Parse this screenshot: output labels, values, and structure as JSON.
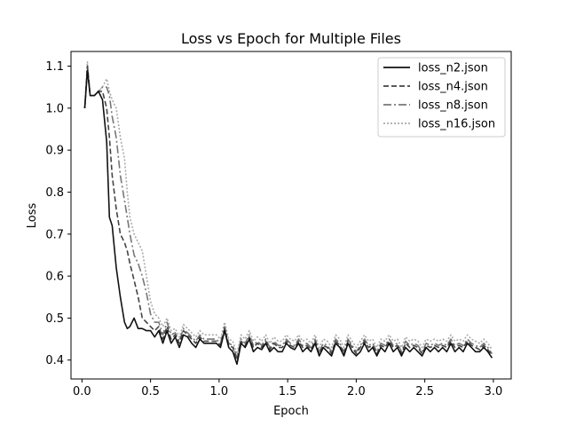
{
  "chart_data": {
    "type": "line",
    "title": "Loss vs Epoch for Multiple Files",
    "xlabel": "Epoch",
    "ylabel": "Loss",
    "xlim": [
      -0.08,
      3.13
    ],
    "ylim": [
      0.355,
      1.135
    ],
    "xticks": [
      0.0,
      0.5,
      1.0,
      1.5,
      2.0,
      2.5,
      3.0
    ],
    "xtick_labels": [
      "0.0",
      "0.5",
      "1.0",
      "1.5",
      "2.0",
      "2.5",
      "3.0"
    ],
    "yticks": [
      0.4,
      0.5,
      0.6,
      0.7,
      0.8,
      0.9,
      1.0,
      1.1
    ],
    "ytick_labels": [
      "0.4",
      "0.5",
      "0.6",
      "0.7",
      "0.8",
      "0.9",
      "1.0",
      "1.1"
    ],
    "grid": false,
    "legend_position": "upper right",
    "series": [
      {
        "name": "loss_n2.json",
        "color": "#111111",
        "dash": "",
        "x": [
          0.02,
          0.04,
          0.06,
          0.09,
          0.12,
          0.15,
          0.18,
          0.2,
          0.22,
          0.25,
          0.28,
          0.31,
          0.33,
          0.35,
          0.38,
          0.41,
          0.44,
          0.47,
          0.5,
          0.53,
          0.56,
          0.59,
          0.62,
          0.65,
          0.68,
          0.71,
          0.74,
          0.77,
          0.8,
          0.83,
          0.86,
          0.89,
          0.92,
          0.95,
          0.98,
          1.01,
          1.04,
          1.07,
          1.1,
          1.13,
          1.16,
          1.19,
          1.22,
          1.25,
          1.28,
          1.31,
          1.34,
          1.37,
          1.4,
          1.43,
          1.46,
          1.49,
          1.52,
          1.55,
          1.58,
          1.61,
          1.64,
          1.67,
          1.7,
          1.73,
          1.76,
          1.79,
          1.82,
          1.85,
          1.88,
          1.91,
          1.94,
          1.97,
          2.0,
          2.03,
          2.06,
          2.09,
          2.12,
          2.15,
          2.18,
          2.21,
          2.24,
          2.27,
          2.3,
          2.33,
          2.36,
          2.39,
          2.42,
          2.45,
          2.48,
          2.51,
          2.54,
          2.57,
          2.6,
          2.63,
          2.66,
          2.69,
          2.72,
          2.75,
          2.78,
          2.81,
          2.84,
          2.87,
          2.9,
          2.93,
          2.96,
          2.99
        ],
        "y": [
          1.0,
          1.09,
          1.03,
          1.03,
          1.04,
          1.02,
          0.92,
          0.74,
          0.72,
          0.62,
          0.55,
          0.49,
          0.475,
          0.48,
          0.5,
          0.475,
          0.475,
          0.47,
          0.47,
          0.455,
          0.47,
          0.44,
          0.47,
          0.44,
          0.455,
          0.43,
          0.46,
          0.455,
          0.44,
          0.43,
          0.45,
          0.44,
          0.44,
          0.44,
          0.44,
          0.43,
          0.47,
          0.43,
          0.42,
          0.39,
          0.44,
          0.43,
          0.45,
          0.42,
          0.43,
          0.425,
          0.44,
          0.42,
          0.43,
          0.42,
          0.42,
          0.44,
          0.43,
          0.425,
          0.44,
          0.42,
          0.43,
          0.42,
          0.44,
          0.41,
          0.43,
          0.42,
          0.41,
          0.44,
          0.43,
          0.41,
          0.44,
          0.42,
          0.41,
          0.42,
          0.44,
          0.42,
          0.43,
          0.41,
          0.43,
          0.42,
          0.44,
          0.42,
          0.43,
          0.41,
          0.43,
          0.42,
          0.43,
          0.42,
          0.41,
          0.43,
          0.42,
          0.43,
          0.42,
          0.43,
          0.42,
          0.44,
          0.42,
          0.43,
          0.42,
          0.44,
          0.43,
          0.42,
          0.42,
          0.43,
          0.42,
          0.405
        ]
      },
      {
        "name": "loss_n4.json",
        "color": "#444444",
        "dash": "6,3",
        "x": [
          0.02,
          0.04,
          0.06,
          0.09,
          0.12,
          0.15,
          0.18,
          0.2,
          0.22,
          0.25,
          0.28,
          0.31,
          0.33,
          0.35,
          0.38,
          0.41,
          0.44,
          0.47,
          0.5,
          0.53,
          0.56,
          0.59,
          0.62,
          0.65,
          0.68,
          0.71,
          0.74,
          0.77,
          0.8,
          0.83,
          0.86,
          0.89,
          0.92,
          0.95,
          0.98,
          1.01,
          1.04,
          1.07,
          1.1,
          1.13,
          1.16,
          1.19,
          1.22,
          1.25,
          1.28,
          1.31,
          1.34,
          1.37,
          1.4,
          1.43,
          1.46,
          1.49,
          1.52,
          1.55,
          1.58,
          1.61,
          1.64,
          1.67,
          1.7,
          1.73,
          1.76,
          1.79,
          1.82,
          1.85,
          1.88,
          1.91,
          1.94,
          1.97,
          2.0,
          2.03,
          2.06,
          2.09,
          2.12,
          2.15,
          2.18,
          2.21,
          2.24,
          2.27,
          2.3,
          2.33,
          2.36,
          2.39,
          2.42,
          2.45,
          2.48,
          2.51,
          2.54,
          2.57,
          2.6,
          2.63,
          2.66,
          2.69,
          2.72,
          2.75,
          2.78,
          2.81,
          2.84,
          2.87,
          2.9,
          2.93,
          2.96,
          2.99
        ],
        "y": [
          1.0,
          1.1,
          1.03,
          1.03,
          1.04,
          1.04,
          1.0,
          0.93,
          0.84,
          0.76,
          0.7,
          0.68,
          0.66,
          0.63,
          0.59,
          0.55,
          0.5,
          0.49,
          0.48,
          0.47,
          0.48,
          0.45,
          0.48,
          0.45,
          0.46,
          0.44,
          0.47,
          0.46,
          0.45,
          0.44,
          0.455,
          0.445,
          0.445,
          0.445,
          0.445,
          0.435,
          0.475,
          0.435,
          0.43,
          0.4,
          0.445,
          0.435,
          0.455,
          0.43,
          0.44,
          0.43,
          0.445,
          0.425,
          0.44,
          0.43,
          0.43,
          0.445,
          0.435,
          0.43,
          0.445,
          0.43,
          0.435,
          0.425,
          0.445,
          0.415,
          0.435,
          0.43,
          0.415,
          0.445,
          0.435,
          0.415,
          0.445,
          0.43,
          0.415,
          0.43,
          0.445,
          0.43,
          0.435,
          0.415,
          0.435,
          0.43,
          0.445,
          0.43,
          0.435,
          0.415,
          0.44,
          0.43,
          0.435,
          0.43,
          0.415,
          0.435,
          0.43,
          0.435,
          0.43,
          0.435,
          0.43,
          0.445,
          0.43,
          0.435,
          0.43,
          0.445,
          0.435,
          0.43,
          0.425,
          0.435,
          0.425,
          0.41
        ]
      },
      {
        "name": "loss_n8.json",
        "color": "#777777",
        "dash": "9,3,2,3",
        "x": [
          0.02,
          0.04,
          0.06,
          0.09,
          0.12,
          0.15,
          0.18,
          0.2,
          0.22,
          0.25,
          0.28,
          0.31,
          0.33,
          0.35,
          0.38,
          0.41,
          0.44,
          0.47,
          0.5,
          0.53,
          0.56,
          0.59,
          0.62,
          0.65,
          0.68,
          0.71,
          0.74,
          0.77,
          0.8,
          0.83,
          0.86,
          0.89,
          0.92,
          0.95,
          0.98,
          1.01,
          1.04,
          1.07,
          1.1,
          1.13,
          1.16,
          1.19,
          1.22,
          1.25,
          1.28,
          1.31,
          1.34,
          1.37,
          1.4,
          1.43,
          1.46,
          1.49,
          1.52,
          1.55,
          1.58,
          1.61,
          1.64,
          1.67,
          1.7,
          1.73,
          1.76,
          1.79,
          1.82,
          1.85,
          1.88,
          1.91,
          1.94,
          1.97,
          2.0,
          2.03,
          2.06,
          2.09,
          2.12,
          2.15,
          2.18,
          2.21,
          2.24,
          2.27,
          2.3,
          2.33,
          2.36,
          2.39,
          2.42,
          2.45,
          2.48,
          2.51,
          2.54,
          2.57,
          2.6,
          2.63,
          2.66,
          2.69,
          2.72,
          2.75,
          2.78,
          2.81,
          2.84,
          2.87,
          2.9,
          2.93,
          2.96,
          2.99
        ],
        "y": [
          1.0,
          1.1,
          1.03,
          1.03,
          1.04,
          1.05,
          1.05,
          1.03,
          0.98,
          0.93,
          0.84,
          0.78,
          0.74,
          0.7,
          0.65,
          0.63,
          0.6,
          0.56,
          0.51,
          0.49,
          0.49,
          0.46,
          0.49,
          0.46,
          0.465,
          0.445,
          0.475,
          0.465,
          0.455,
          0.445,
          0.46,
          0.45,
          0.45,
          0.45,
          0.45,
          0.44,
          0.48,
          0.44,
          0.435,
          0.405,
          0.45,
          0.44,
          0.46,
          0.435,
          0.445,
          0.435,
          0.45,
          0.43,
          0.445,
          0.435,
          0.435,
          0.45,
          0.44,
          0.435,
          0.45,
          0.435,
          0.44,
          0.43,
          0.45,
          0.42,
          0.44,
          0.435,
          0.42,
          0.45,
          0.44,
          0.42,
          0.45,
          0.435,
          0.42,
          0.435,
          0.45,
          0.435,
          0.44,
          0.42,
          0.44,
          0.435,
          0.45,
          0.435,
          0.44,
          0.42,
          0.445,
          0.435,
          0.44,
          0.435,
          0.42,
          0.44,
          0.435,
          0.44,
          0.435,
          0.44,
          0.435,
          0.45,
          0.435,
          0.44,
          0.435,
          0.45,
          0.44,
          0.435,
          0.43,
          0.44,
          0.43,
          0.415
        ]
      },
      {
        "name": "loss_n16.json",
        "color": "#aaaaaa",
        "dash": "2,2",
        "x": [
          0.02,
          0.04,
          0.06,
          0.09,
          0.12,
          0.15,
          0.18,
          0.2,
          0.22,
          0.25,
          0.28,
          0.31,
          0.33,
          0.35,
          0.38,
          0.41,
          0.44,
          0.47,
          0.5,
          0.53,
          0.56,
          0.59,
          0.62,
          0.65,
          0.68,
          0.71,
          0.74,
          0.77,
          0.8,
          0.83,
          0.86,
          0.89,
          0.92,
          0.95,
          0.98,
          1.01,
          1.04,
          1.07,
          1.1,
          1.13,
          1.16,
          1.19,
          1.22,
          1.25,
          1.28,
          1.31,
          1.34,
          1.37,
          1.4,
          1.43,
          1.46,
          1.49,
          1.52,
          1.55,
          1.58,
          1.61,
          1.64,
          1.67,
          1.7,
          1.73,
          1.76,
          1.79,
          1.82,
          1.85,
          1.88,
          1.91,
          1.94,
          1.97,
          2.0,
          2.03,
          2.06,
          2.09,
          2.12,
          2.15,
          2.18,
          2.21,
          2.24,
          2.27,
          2.3,
          2.33,
          2.36,
          2.39,
          2.42,
          2.45,
          2.48,
          2.51,
          2.54,
          2.57,
          2.6,
          2.63,
          2.66,
          2.69,
          2.72,
          2.75,
          2.78,
          2.81,
          2.84,
          2.87,
          2.9,
          2.93,
          2.96,
          2.99
        ],
        "y": [
          1.0,
          1.11,
          1.03,
          1.03,
          1.04,
          1.05,
          1.07,
          1.04,
          1.02,
          1.0,
          0.93,
          0.88,
          0.8,
          0.74,
          0.7,
          0.68,
          0.66,
          0.6,
          0.54,
          0.51,
          0.5,
          0.48,
          0.5,
          0.47,
          0.475,
          0.455,
          0.485,
          0.475,
          0.465,
          0.455,
          0.47,
          0.46,
          0.46,
          0.46,
          0.46,
          0.45,
          0.49,
          0.45,
          0.445,
          0.415,
          0.46,
          0.45,
          0.47,
          0.445,
          0.455,
          0.445,
          0.46,
          0.44,
          0.455,
          0.445,
          0.445,
          0.46,
          0.45,
          0.445,
          0.46,
          0.445,
          0.45,
          0.44,
          0.46,
          0.43,
          0.45,
          0.445,
          0.43,
          0.46,
          0.45,
          0.43,
          0.46,
          0.445,
          0.43,
          0.445,
          0.46,
          0.445,
          0.45,
          0.43,
          0.45,
          0.445,
          0.46,
          0.445,
          0.45,
          0.43,
          0.455,
          0.445,
          0.45,
          0.445,
          0.43,
          0.45,
          0.445,
          0.45,
          0.445,
          0.45,
          0.445,
          0.46,
          0.445,
          0.45,
          0.445,
          0.46,
          0.45,
          0.445,
          0.44,
          0.45,
          0.44,
          0.425
        ]
      }
    ]
  }
}
